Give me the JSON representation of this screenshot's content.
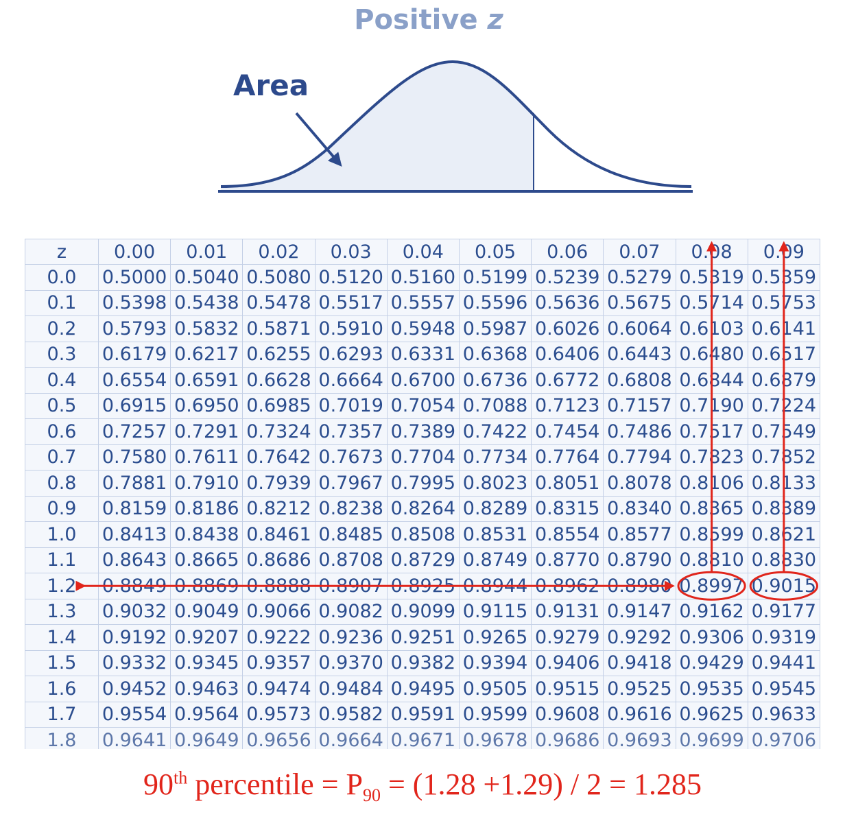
{
  "figure": {
    "title_main": "Positive ",
    "title_var": "z",
    "area_label": "Area"
  },
  "table": {
    "headers": [
      "z",
      "0.00",
      "0.01",
      "0.02",
      "0.03",
      "0.04",
      "0.05",
      "0.06",
      "0.07",
      "0.08",
      "0.09"
    ],
    "rows": [
      [
        "0.0",
        "0.5000",
        "0.5040",
        "0.5080",
        "0.5120",
        "0.5160",
        "0.5199",
        "0.5239",
        "0.5279",
        "0.5319",
        "0.5359"
      ],
      [
        "0.1",
        "0.5398",
        "0.5438",
        "0.5478",
        "0.5517",
        "0.5557",
        "0.5596",
        "0.5636",
        "0.5675",
        "0.5714",
        "0.5753"
      ],
      [
        "0.2",
        "0.5793",
        "0.5832",
        "0.5871",
        "0.5910",
        "0.5948",
        "0.5987",
        "0.6026",
        "0.6064",
        "0.6103",
        "0.6141"
      ],
      [
        "0.3",
        "0.6179",
        "0.6217",
        "0.6255",
        "0.6293",
        "0.6331",
        "0.6368",
        "0.6406",
        "0.6443",
        "0.6480",
        "0.6517"
      ],
      [
        "0.4",
        "0.6554",
        "0.6591",
        "0.6628",
        "0.6664",
        "0.6700",
        "0.6736",
        "0.6772",
        "0.6808",
        "0.6844",
        "0.6879"
      ],
      [
        "0.5",
        "0.6915",
        "0.6950",
        "0.6985",
        "0.7019",
        "0.7054",
        "0.7088",
        "0.7123",
        "0.7157",
        "0.7190",
        "0.7224"
      ],
      [
        "0.6",
        "0.7257",
        "0.7291",
        "0.7324",
        "0.7357",
        "0.7389",
        "0.7422",
        "0.7454",
        "0.7486",
        "0.7517",
        "0.7549"
      ],
      [
        "0.7",
        "0.7580",
        "0.7611",
        "0.7642",
        "0.7673",
        "0.7704",
        "0.7734",
        "0.7764",
        "0.7794",
        "0.7823",
        "0.7852"
      ],
      [
        "0.8",
        "0.7881",
        "0.7910",
        "0.7939",
        "0.7967",
        "0.7995",
        "0.8023",
        "0.8051",
        "0.8078",
        "0.8106",
        "0.8133"
      ],
      [
        "0.9",
        "0.8159",
        "0.8186",
        "0.8212",
        "0.8238",
        "0.8264",
        "0.8289",
        "0.8315",
        "0.8340",
        "0.8365",
        "0.8389"
      ],
      [
        "1.0",
        "0.8413",
        "0.8438",
        "0.8461",
        "0.8485",
        "0.8508",
        "0.8531",
        "0.8554",
        "0.8577",
        "0.8599",
        "0.8621"
      ],
      [
        "1.1",
        "0.8643",
        "0.8665",
        "0.8686",
        "0.8708",
        "0.8729",
        "0.8749",
        "0.8770",
        "0.8790",
        "0.8810",
        "0.8830"
      ],
      [
        "1.2",
        "0.8849",
        "0.8869",
        "0.8888",
        "0.8907",
        "0.8925",
        "0.8944",
        "0.8962",
        "0.8980",
        "0.8997",
        "0.9015"
      ],
      [
        "1.3",
        "0.9032",
        "0.9049",
        "0.9066",
        "0.9082",
        "0.9099",
        "0.9115",
        "0.9131",
        "0.9147",
        "0.9162",
        "0.9177"
      ],
      [
        "1.4",
        "0.9192",
        "0.9207",
        "0.9222",
        "0.9236",
        "0.9251",
        "0.9265",
        "0.9279",
        "0.9292",
        "0.9306",
        "0.9319"
      ],
      [
        "1.5",
        "0.9332",
        "0.9345",
        "0.9357",
        "0.9370",
        "0.9382",
        "0.9394",
        "0.9406",
        "0.9418",
        "0.9429",
        "0.9441"
      ],
      [
        "1.6",
        "0.9452",
        "0.9463",
        "0.9474",
        "0.9484",
        "0.9495",
        "0.9505",
        "0.9515",
        "0.9525",
        "0.9535",
        "0.9545"
      ],
      [
        "1.7",
        "0.9554",
        "0.9564",
        "0.9573",
        "0.9582",
        "0.9591",
        "0.9599",
        "0.9608",
        "0.9616",
        "0.9625",
        "0.9633"
      ],
      [
        "1.8",
        "0.9641",
        "0.9649",
        "0.9656",
        "0.9664",
        "0.9671",
        "0.9678",
        "0.9686",
        "0.9693",
        "0.9699",
        "0.9706"
      ]
    ]
  },
  "annotations": {
    "highlighted_row": "1.2",
    "highlighted_columns": [
      "0.08",
      "0.09"
    ],
    "circled_values": [
      "0.8997",
      "0.9015"
    ]
  },
  "footer": {
    "prefix": "90",
    "ordinal": "th",
    "middle": " percentile = P",
    "subscript": "90",
    "formula": " = (1.28 +1.29) / 2 = 1.285"
  },
  "colors": {
    "table_text": "#2b4d8e",
    "curve": "#2d4a8c",
    "annotation": "#e1251b"
  }
}
